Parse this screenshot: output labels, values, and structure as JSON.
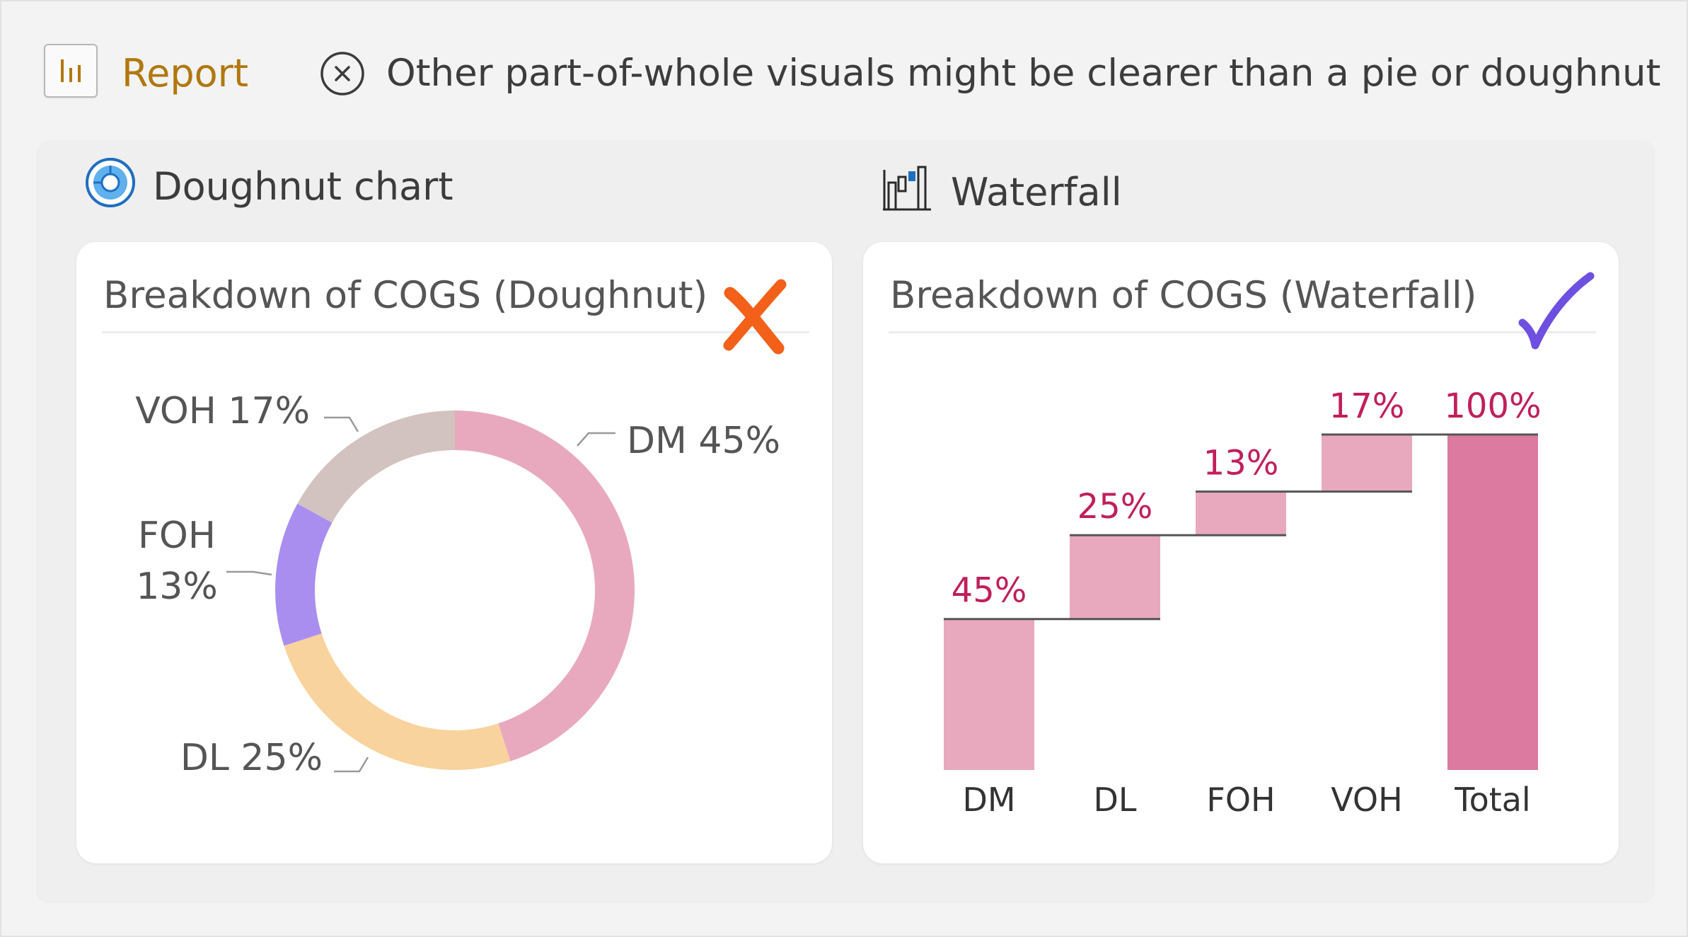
{
  "header": {
    "report_label": "Report",
    "tip_text": "Other part-of-whole visuals might be clearer than a pie or doughnut",
    "report_icon": "bar-chart-icon",
    "dismiss_icon": "close-circle-icon"
  },
  "sections": {
    "left_label": "Doughnut chart",
    "left_icon": "doughnut-chart-icon",
    "right_label": "Waterfall",
    "right_icon": "waterfall-chart-icon"
  },
  "verdicts": {
    "doughnut": "cross-mark-icon",
    "waterfall": "check-mark-icon"
  },
  "colors": {
    "report_accent": "#b0780e",
    "DM": "#e8a9bf",
    "DL": "#f9d39e",
    "FOH": "#a98ef0",
    "VOH": "#d3c3c0",
    "waterfall_bar": "#e8a9bf",
    "waterfall_total": "#dc7a9f",
    "waterfall_label": "#c0205a",
    "cross": "#f2601a",
    "check": "#6f4fe0"
  },
  "chart_data": [
    {
      "type": "pie",
      "title": "Breakdown of COGS (Doughnut)",
      "doughnut": true,
      "slices": [
        {
          "label": "DM",
          "value": 45,
          "display": "45%"
        },
        {
          "label": "DL",
          "value": 25,
          "display": "25%"
        },
        {
          "label": "FOH",
          "value": 13,
          "display": "13%"
        },
        {
          "label": "VOH",
          "value": 17,
          "display": "17%"
        }
      ],
      "legend": "none"
    },
    {
      "type": "bar",
      "subtype": "waterfall",
      "title": "Breakdown of COGS (Waterfall)",
      "categories": [
        "DM",
        "DL",
        "FOH",
        "VOH",
        "Total"
      ],
      "values": [
        45,
        25,
        13,
        17,
        100
      ],
      "data_labels": [
        "45%",
        "25%",
        "13%",
        "17%",
        "100%"
      ],
      "ylim": [
        0,
        100
      ],
      "grid": false,
      "legend": "none"
    }
  ]
}
